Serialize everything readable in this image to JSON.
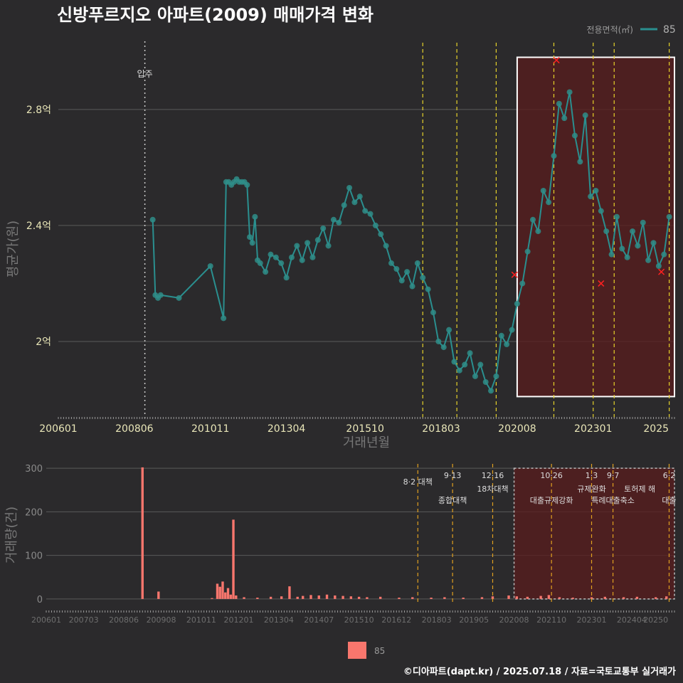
{
  "title": "신방푸르지오 아파트(2009) 매매가격 변화",
  "legend": {
    "title": "전용면적(㎡)",
    "label": "85",
    "bottom_label": "85"
  },
  "footer": "©디아파트(dapt.kr) / 2025.07.18 / 자료=국토교통부 실거래가",
  "colors": {
    "line": "#2a8f8f",
    "point": "#2f8d88",
    "bar": "#f8766d",
    "highlight": "#5a1c1c",
    "policy": "#e6d22a",
    "policy2": "#e0a020",
    "marker": "#ff2020"
  },
  "chart_data": [
    {
      "type": "line",
      "title": "신방푸르지오 아파트(2009) 매매가격 변화",
      "xlabel": "거래년월",
      "ylabel": "평균가(원)",
      "yticks": [
        {
          "v": 2.0,
          "label": "2억"
        },
        {
          "v": 2.4,
          "label": "2.4억"
        },
        {
          "v": 2.8,
          "label": "2.8억"
        }
      ],
      "ylim": [
        1.73,
        3.05
      ],
      "xlim": [
        "2006-01",
        "2025-08"
      ],
      "xticks": [
        "200601",
        "200806",
        "201011",
        "201304",
        "201510",
        "201803",
        "202008",
        "202301",
        "2025"
      ],
      "annotations": [
        {
          "x": "2008-10",
          "label": "입주"
        }
      ],
      "policy_lines": [
        "2017-08",
        "2018-09",
        "2019-12",
        "2021-10",
        "2023-01",
        "2023-09",
        "2025-06"
      ],
      "highlight_range": [
        "2020-08",
        "2025-08"
      ],
      "highlight_ylim": [
        1.81,
        2.98
      ],
      "red_markers": [
        {
          "x": "2021-11",
          "y": 2.97
        },
        {
          "x": "2020-07",
          "y": 2.23
        },
        {
          "x": "2023-04",
          "y": 2.2
        },
        {
          "x": "2025-03",
          "y": 2.24
        }
      ],
      "series": [
        {
          "name": "85",
          "points": [
            {
              "x": "2009-01",
              "y": 2.42
            },
            {
              "x": "2009-02",
              "y": 2.16
            },
            {
              "x": "2009-03",
              "y": 2.15
            },
            {
              "x": "2009-04",
              "y": 2.16
            },
            {
              "x": "2009-11",
              "y": 2.15
            },
            {
              "x": "2010-11",
              "y": 2.26
            },
            {
              "x": "2011-04",
              "y": 2.08
            },
            {
              "x": "2011-05",
              "y": 2.55
            },
            {
              "x": "2011-06",
              "y": 2.55
            },
            {
              "x": "2011-07",
              "y": 2.54
            },
            {
              "x": "2011-08",
              "y": 2.55
            },
            {
              "x": "2011-09",
              "y": 2.56
            },
            {
              "x": "2011-10",
              "y": 2.55
            },
            {
              "x": "2011-11",
              "y": 2.55
            },
            {
              "x": "2011-12",
              "y": 2.55
            },
            {
              "x": "2012-01",
              "y": 2.54
            },
            {
              "x": "2012-02",
              "y": 2.36
            },
            {
              "x": "2012-03",
              "y": 2.34
            },
            {
              "x": "2012-04",
              "y": 2.43
            },
            {
              "x": "2012-05",
              "y": 2.28
            },
            {
              "x": "2012-06",
              "y": 2.27
            },
            {
              "x": "2012-08",
              "y": 2.24
            },
            {
              "x": "2012-10",
              "y": 2.3
            },
            {
              "x": "2012-12",
              "y": 2.29
            },
            {
              "x": "2013-02",
              "y": 2.27
            },
            {
              "x": "2013-04",
              "y": 2.22
            },
            {
              "x": "2013-06",
              "y": 2.29
            },
            {
              "x": "2013-08",
              "y": 2.33
            },
            {
              "x": "2013-10",
              "y": 2.28
            },
            {
              "x": "2013-12",
              "y": 2.34
            },
            {
              "x": "2014-02",
              "y": 2.29
            },
            {
              "x": "2014-04",
              "y": 2.35
            },
            {
              "x": "2014-06",
              "y": 2.39
            },
            {
              "x": "2014-08",
              "y": 2.33
            },
            {
              "x": "2014-10",
              "y": 2.42
            },
            {
              "x": "2014-12",
              "y": 2.41
            },
            {
              "x": "2015-02",
              "y": 2.47
            },
            {
              "x": "2015-04",
              "y": 2.53
            },
            {
              "x": "2015-06",
              "y": 2.48
            },
            {
              "x": "2015-08",
              "y": 2.5
            },
            {
              "x": "2015-10",
              "y": 2.45
            },
            {
              "x": "2015-12",
              "y": 2.44
            },
            {
              "x": "2016-02",
              "y": 2.4
            },
            {
              "x": "2016-04",
              "y": 2.37
            },
            {
              "x": "2016-06",
              "y": 2.33
            },
            {
              "x": "2016-08",
              "y": 2.27
            },
            {
              "x": "2016-10",
              "y": 2.25
            },
            {
              "x": "2016-12",
              "y": 2.21
            },
            {
              "x": "2017-02",
              "y": 2.24
            },
            {
              "x": "2017-04",
              "y": 2.19
            },
            {
              "x": "2017-06",
              "y": 2.27
            },
            {
              "x": "2017-08",
              "y": 2.22
            },
            {
              "x": "2017-10",
              "y": 2.18
            },
            {
              "x": "2017-12",
              "y": 2.1
            },
            {
              "x": "2018-02",
              "y": 2.0
            },
            {
              "x": "2018-04",
              "y": 1.98
            },
            {
              "x": "2018-06",
              "y": 2.04
            },
            {
              "x": "2018-08",
              "y": 1.93
            },
            {
              "x": "2018-10",
              "y": 1.9
            },
            {
              "x": "2018-12",
              "y": 1.92
            },
            {
              "x": "2019-02",
              "y": 1.96
            },
            {
              "x": "2019-04",
              "y": 1.88
            },
            {
              "x": "2019-06",
              "y": 1.92
            },
            {
              "x": "2019-08",
              "y": 1.86
            },
            {
              "x": "2019-10",
              "y": 1.83
            },
            {
              "x": "2019-12",
              "y": 1.88
            },
            {
              "x": "2020-02",
              "y": 2.02
            },
            {
              "x": "2020-04",
              "y": 1.99
            },
            {
              "x": "2020-06",
              "y": 2.04
            },
            {
              "x": "2020-08",
              "y": 2.13
            },
            {
              "x": "2020-10",
              "y": 2.2
            },
            {
              "x": "2020-12",
              "y": 2.31
            },
            {
              "x": "2021-02",
              "y": 2.42
            },
            {
              "x": "2021-04",
              "y": 2.38
            },
            {
              "x": "2021-06",
              "y": 2.52
            },
            {
              "x": "2021-08",
              "y": 2.48
            },
            {
              "x": "2021-10",
              "y": 2.64
            },
            {
              "x": "2021-12",
              "y": 2.82
            },
            {
              "x": "2022-02",
              "y": 2.77
            },
            {
              "x": "2022-04",
              "y": 2.86
            },
            {
              "x": "2022-06",
              "y": 2.71
            },
            {
              "x": "2022-08",
              "y": 2.62
            },
            {
              "x": "2022-10",
              "y": 2.78
            },
            {
              "x": "2022-12",
              "y": 2.5
            },
            {
              "x": "2023-02",
              "y": 2.52
            },
            {
              "x": "2023-04",
              "y": 2.45
            },
            {
              "x": "2023-06",
              "y": 2.38
            },
            {
              "x": "2023-08",
              "y": 2.3
            },
            {
              "x": "2023-10",
              "y": 2.43
            },
            {
              "x": "2023-12",
              "y": 2.32
            },
            {
              "x": "2024-02",
              "y": 2.29
            },
            {
              "x": "2024-04",
              "y": 2.38
            },
            {
              "x": "2024-06",
              "y": 2.33
            },
            {
              "x": "2024-08",
              "y": 2.41
            },
            {
              "x": "2024-10",
              "y": 2.28
            },
            {
              "x": "2024-12",
              "y": 2.34
            },
            {
              "x": "2025-02",
              "y": 2.26
            },
            {
              "x": "2025-04",
              "y": 2.3
            },
            {
              "x": "2025-06",
              "y": 2.43
            }
          ]
        }
      ]
    },
    {
      "type": "bar",
      "ylabel": "거래량(건)",
      "yticks": [
        0,
        100,
        200,
        300
      ],
      "ylim": [
        -10,
        310
      ],
      "xticks": [
        "200601",
        "200703",
        "200806",
        "200908",
        "201011",
        "201201",
        "201304",
        "201407",
        "201510",
        "201612",
        "201803",
        "201905",
        "202008",
        "202110",
        "202301",
        "202404",
        "20250"
      ],
      "policy_labels": [
        {
          "x": "2017-08",
          "date": "8·2",
          "label": "8·2 대책"
        },
        {
          "x": "2018-09",
          "date": "9·13",
          "label": "종합대책"
        },
        {
          "x": "2019-12",
          "date": "12·16",
          "label": "18차대책"
        },
        {
          "x": "2021-10",
          "date": "10·26",
          "label": "대출규제강화"
        },
        {
          "x": "2023-01",
          "date": "1·3",
          "label": "규제완화"
        },
        {
          "x": "2023-09",
          "date": "9·7",
          "label": "특례대출축소"
        },
        {
          "x": "2024-07",
          "date": "",
          "label": "토허제 해"
        },
        {
          "x": "2025-06",
          "date": "6·2",
          "label": "대출"
        }
      ],
      "series": [
        {
          "name": "85",
          "points": [
            {
              "x": "2009-01",
              "y": 302
            },
            {
              "x": "2009-07",
              "y": 17
            },
            {
              "x": "2011-03",
              "y": 2
            },
            {
              "x": "2011-05",
              "y": 35
            },
            {
              "x": "2011-06",
              "y": 28
            },
            {
              "x": "2011-07",
              "y": 40
            },
            {
              "x": "2011-08",
              "y": 15
            },
            {
              "x": "2011-09",
              "y": 25
            },
            {
              "x": "2011-10",
              "y": 10
            },
            {
              "x": "2011-11",
              "y": 182
            },
            {
              "x": "2011-12",
              "y": 8
            },
            {
              "x": "2012-03",
              "y": 4
            },
            {
              "x": "2012-08",
              "y": 3
            },
            {
              "x": "2013-01",
              "y": 5
            },
            {
              "x": "2013-05",
              "y": 6
            },
            {
              "x": "2013-08",
              "y": 29
            },
            {
              "x": "2013-11",
              "y": 5
            },
            {
              "x": "2014-01",
              "y": 7
            },
            {
              "x": "2014-04",
              "y": 9
            },
            {
              "x": "2014-07",
              "y": 8
            },
            {
              "x": "2014-10",
              "y": 10
            },
            {
              "x": "2015-01",
              "y": 8
            },
            {
              "x": "2015-04",
              "y": 7
            },
            {
              "x": "2015-07",
              "y": 6
            },
            {
              "x": "2015-10",
              "y": 5
            },
            {
              "x": "2016-01",
              "y": 4
            },
            {
              "x": "2016-06",
              "y": 5
            },
            {
              "x": "2017-01",
              "y": 3
            },
            {
              "x": "2017-06",
              "y": 4
            },
            {
              "x": "2018-01",
              "y": 3
            },
            {
              "x": "2018-06",
              "y": 4
            },
            {
              "x": "2019-01",
              "y": 3
            },
            {
              "x": "2019-08",
              "y": 4
            },
            {
              "x": "2019-12",
              "y": 6
            },
            {
              "x": "2020-06",
              "y": 8
            },
            {
              "x": "2020-09",
              "y": 6
            },
            {
              "x": "2021-01",
              "y": 5
            },
            {
              "x": "2021-06",
              "y": 7
            },
            {
              "x": "2021-09",
              "y": 9
            },
            {
              "x": "2022-01",
              "y": 4
            },
            {
              "x": "2022-06",
              "y": 3
            },
            {
              "x": "2023-01",
              "y": 4
            },
            {
              "x": "2023-06",
              "y": 5
            },
            {
              "x": "2024-01",
              "y": 4
            },
            {
              "x": "2024-06",
              "y": 5
            },
            {
              "x": "2025-01",
              "y": 4
            },
            {
              "x": "2025-05",
              "y": 6
            }
          ]
        }
      ]
    }
  ]
}
